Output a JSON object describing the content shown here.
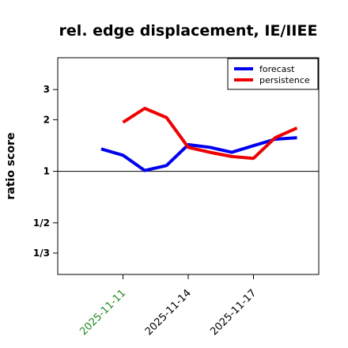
{
  "chart_data": {
    "type": "line",
    "title": "rel. edge displacement, IE/IIEE",
    "ylabel": "ratio score",
    "xlabel": "",
    "x": [
      "2025-11-10",
      "2025-11-11",
      "2025-11-12",
      "2025-11-13",
      "2025-11-14",
      "2025-11-15",
      "2025-11-16",
      "2025-11-17",
      "2025-11-18",
      "2025-11-19"
    ],
    "x_ticks": [
      {
        "label": "2025-11-11",
        "value": "2025-11-11",
        "color": "#228B22"
      },
      {
        "label": "2025-11-14",
        "value": "2025-11-14",
        "color": "#000000"
      },
      {
        "label": "2025-11-17",
        "value": "2025-11-17",
        "color": "#000000"
      }
    ],
    "x_range": [
      "2025-11-08",
      "2025-11-20"
    ],
    "y_scale": "log",
    "y_range": [
      0.25,
      4.6
    ],
    "y_ticks": [
      {
        "label": "1/3",
        "value": 0.3333
      },
      {
        "label": "1/2",
        "value": 0.5
      },
      {
        "label": "1",
        "value": 1
      },
      {
        "label": "2",
        "value": 2
      },
      {
        "label": "3",
        "value": 3
      }
    ],
    "reference_line": 1,
    "legend_position": "top-right",
    "series": [
      {
        "name": "forecast",
        "color": "#0000ee",
        "values": [
          1.35,
          1.24,
          1.01,
          1.08,
          1.43,
          1.38,
          1.29,
          1.41,
          1.54,
          1.57
        ]
      },
      {
        "name": "persistence",
        "color": "#ee0000",
        "values": [
          null,
          1.93,
          2.33,
          2.06,
          1.38,
          1.29,
          1.22,
          1.19,
          1.57,
          1.79
        ]
      }
    ]
  }
}
